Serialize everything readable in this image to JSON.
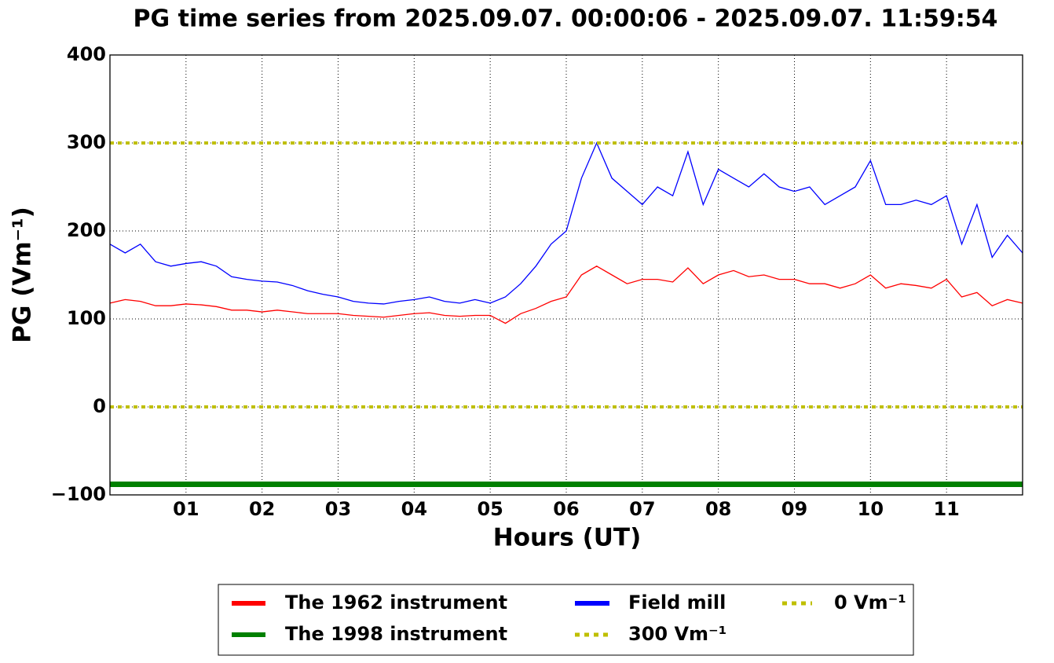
{
  "chart_data": {
    "type": "line",
    "title": "PG time series from 2025.09.07. 00:00:06 - 2025.09.07. 11:59:54",
    "x_label": "Hours (UT)",
    "y_label": "PG (Vm⁻¹)",
    "x": [
      0,
      0.2,
      0.4,
      0.6,
      0.8,
      1,
      1.2,
      1.4,
      1.6,
      1.8,
      2,
      2.2,
      2.4,
      2.6,
      2.8,
      3,
      3.2,
      3.4,
      3.6,
      3.8,
      4,
      4.2,
      4.4,
      4.6,
      4.8,
      5,
      5.2,
      5.4,
      5.6,
      5.8,
      6,
      6.2,
      6.4,
      6.6,
      6.8,
      7,
      7.2,
      7.4,
      7.6,
      7.8,
      8,
      8.2,
      8.4,
      8.6,
      8.8,
      9,
      9.2,
      9.4,
      9.6,
      9.8,
      10,
      10.2,
      10.4,
      10.6,
      10.8,
      11,
      11.2,
      11.4,
      11.6,
      11.8,
      12
    ],
    "series": [
      {
        "name": "The 1962 instrument",
        "color": "#ff0000",
        "values": [
          118,
          122,
          120,
          115,
          115,
          117,
          116,
          114,
          110,
          110,
          108,
          110,
          108,
          106,
          106,
          106,
          104,
          103,
          102,
          104,
          106,
          107,
          104,
          103,
          104,
          104,
          95,
          106,
          112,
          120,
          125,
          150,
          160,
          150,
          140,
          145,
          145,
          142,
          158,
          140,
          150,
          155,
          148,
          150,
          145,
          145,
          140,
          140,
          135,
          140,
          150,
          135,
          140,
          138,
          135,
          145,
          125,
          130,
          115,
          122,
          118
        ]
      },
      {
        "name": "Field mill",
        "color": "#0000ff",
        "values": [
          185,
          175,
          185,
          165,
          160,
          163,
          165,
          160,
          148,
          145,
          143,
          142,
          138,
          132,
          128,
          125,
          120,
          118,
          117,
          120,
          122,
          125,
          120,
          118,
          122,
          118,
          125,
          140,
          160,
          185,
          200,
          260,
          300,
          260,
          245,
          230,
          250,
          240,
          290,
          230,
          270,
          260,
          250,
          265,
          250,
          245,
          250,
          230,
          240,
          250,
          280,
          230,
          230,
          235,
          230,
          240,
          185,
          230,
          170,
          195,
          175
        ]
      }
    ],
    "hlines": [
      {
        "name": "The 1998 instrument",
        "color": "#008000",
        "value": -88,
        "dashed": false
      },
      {
        "name": "300 Vm⁻¹",
        "color": "#bfbf00",
        "value": 300,
        "dashed": true
      },
      {
        "name": "0 Vm⁻¹",
        "color": "#bfbf00",
        "value": 0,
        "dashed": true
      }
    ],
    "xlim": [
      0,
      12
    ],
    "xticks": [
      {
        "value": 1,
        "label": "01"
      },
      {
        "value": 2,
        "label": "02"
      },
      {
        "value": 3,
        "label": "03"
      },
      {
        "value": 4,
        "label": "04"
      },
      {
        "value": 5,
        "label": "05"
      },
      {
        "value": 6,
        "label": "06"
      },
      {
        "value": 7,
        "label": "07"
      },
      {
        "value": 8,
        "label": "08"
      },
      {
        "value": 9,
        "label": "09"
      },
      {
        "value": 10,
        "label": "10"
      },
      {
        "value": 11,
        "label": "11"
      }
    ],
    "ylim": [
      -100,
      400
    ],
    "yticks": [
      {
        "value": -100,
        "label": "−100"
      },
      0,
      100,
      200,
      300,
      400
    ],
    "grid": true,
    "legend": "bottom"
  }
}
